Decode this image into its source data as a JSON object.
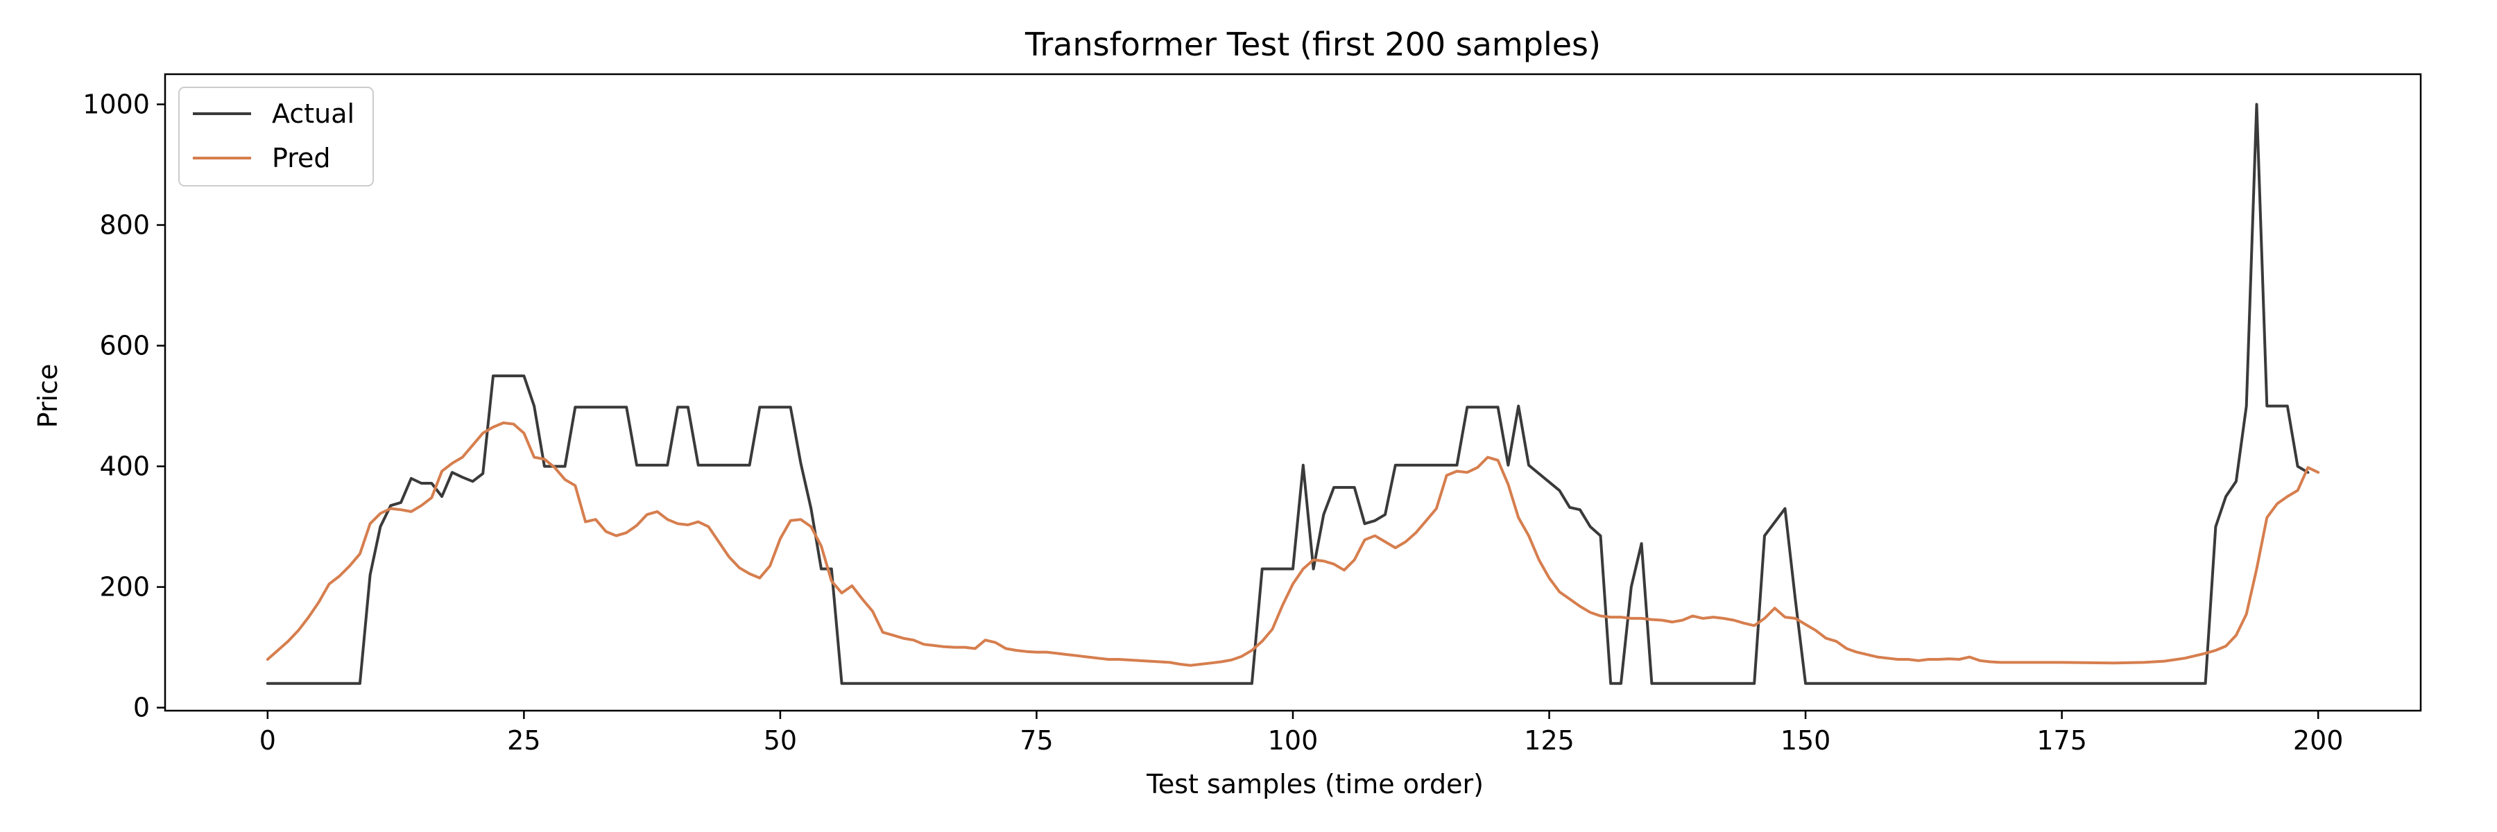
{
  "chart_data": {
    "type": "line",
    "title": "Transformer Test (first 200 samples)",
    "xlabel": "Test samples (time order)",
    "ylabel": "Price",
    "xlim": [
      -10,
      210
    ],
    "ylim": [
      -5,
      1050
    ],
    "xticks": [
      0,
      25,
      50,
      75,
      100,
      125,
      150,
      175,
      200
    ],
    "yticks": [
      0,
      200,
      400,
      600,
      800,
      1000
    ],
    "grid": false,
    "legend_position": "top-left",
    "series": [
      {
        "name": "Actual",
        "color": "#3a3a3a",
        "points": [
          [
            0,
            40
          ],
          [
            9,
            40
          ],
          [
            10,
            220
          ],
          [
            11,
            300
          ],
          [
            12,
            335
          ],
          [
            13,
            340
          ],
          [
            14,
            380
          ],
          [
            15,
            372
          ],
          [
            16,
            372
          ],
          [
            17,
            350
          ],
          [
            18,
            390
          ],
          [
            19,
            382
          ],
          [
            20,
            375
          ],
          [
            21,
            388
          ],
          [
            22,
            550
          ],
          [
            25,
            550
          ],
          [
            26,
            500
          ],
          [
            27,
            400
          ],
          [
            29,
            400
          ],
          [
            30,
            498
          ],
          [
            35,
            498
          ],
          [
            36,
            402
          ],
          [
            39,
            402
          ],
          [
            40,
            498
          ],
          [
            41,
            498
          ],
          [
            42,
            402
          ],
          [
            47,
            402
          ],
          [
            48,
            498
          ],
          [
            51,
            498
          ],
          [
            52,
            405
          ],
          [
            53,
            330
          ],
          [
            54,
            230
          ],
          [
            55,
            230
          ],
          [
            56,
            40
          ],
          [
            96,
            40
          ],
          [
            97,
            230
          ],
          [
            100,
            230
          ],
          [
            101,
            402
          ],
          [
            102,
            230
          ],
          [
            103,
            320
          ],
          [
            104,
            365
          ],
          [
            106,
            365
          ],
          [
            107,
            305
          ],
          [
            108,
            310
          ],
          [
            109,
            320
          ],
          [
            110,
            402
          ],
          [
            116,
            402
          ],
          [
            117,
            498
          ],
          [
            120,
            498
          ],
          [
            121,
            402
          ],
          [
            122,
            500
          ],
          [
            123,
            402
          ],
          [
            126,
            360
          ],
          [
            127,
            332
          ],
          [
            128,
            328
          ],
          [
            129,
            300
          ],
          [
            130,
            285
          ],
          [
            131,
            40
          ],
          [
            132,
            40
          ],
          [
            133,
            200
          ],
          [
            134,
            272
          ],
          [
            135,
            40
          ],
          [
            145,
            40
          ],
          [
            146,
            285
          ],
          [
            148,
            330
          ],
          [
            149,
            180
          ],
          [
            150,
            40
          ],
          [
            189,
            40
          ],
          [
            190,
            300
          ],
          [
            191,
            350
          ],
          [
            192,
            375
          ],
          [
            193,
            500
          ],
          [
            194,
            1000
          ],
          [
            195,
            500
          ],
          [
            197,
            500
          ],
          [
            198,
            400
          ],
          [
            199,
            390
          ]
        ]
      },
      {
        "name": "Pred",
        "color": "#d67e4e",
        "points": [
          [
            0,
            80
          ],
          [
            1,
            95
          ],
          [
            2,
            110
          ],
          [
            3,
            128
          ],
          [
            4,
            150
          ],
          [
            5,
            175
          ],
          [
            6,
            205
          ],
          [
            7,
            218
          ],
          [
            8,
            235
          ],
          [
            9,
            255
          ],
          [
            10,
            305
          ],
          [
            11,
            322
          ],
          [
            12,
            330
          ],
          [
            13,
            328
          ],
          [
            14,
            325
          ],
          [
            15,
            335
          ],
          [
            16,
            348
          ],
          [
            17,
            392
          ],
          [
            18,
            405
          ],
          [
            19,
            415
          ],
          [
            20,
            435
          ],
          [
            21,
            455
          ],
          [
            22,
            465
          ],
          [
            23,
            472
          ],
          [
            24,
            470
          ],
          [
            25,
            455
          ],
          [
            26,
            415
          ],
          [
            27,
            412
          ],
          [
            28,
            398
          ],
          [
            29,
            378
          ],
          [
            30,
            368
          ],
          [
            31,
            308
          ],
          [
            32,
            312
          ],
          [
            33,
            292
          ],
          [
            34,
            285
          ],
          [
            35,
            290
          ],
          [
            36,
            302
          ],
          [
            37,
            320
          ],
          [
            38,
            325
          ],
          [
            39,
            312
          ],
          [
            40,
            305
          ],
          [
            41,
            303
          ],
          [
            42,
            308
          ],
          [
            43,
            300
          ],
          [
            44,
            275
          ],
          [
            45,
            250
          ],
          [
            46,
            232
          ],
          [
            47,
            222
          ],
          [
            48,
            215
          ],
          [
            49,
            235
          ],
          [
            50,
            280
          ],
          [
            51,
            310
          ],
          [
            52,
            312
          ],
          [
            53,
            300
          ],
          [
            54,
            268
          ],
          [
            55,
            210
          ],
          [
            56,
            190
          ],
          [
            57,
            202
          ],
          [
            58,
            180
          ],
          [
            59,
            160
          ],
          [
            60,
            125
          ],
          [
            61,
            120
          ],
          [
            62,
            115
          ],
          [
            63,
            112
          ],
          [
            64,
            105
          ],
          [
            65,
            103
          ],
          [
            66,
            101
          ],
          [
            67,
            100
          ],
          [
            68,
            100
          ],
          [
            69,
            98
          ],
          [
            70,
            112
          ],
          [
            71,
            108
          ],
          [
            72,
            98
          ],
          [
            73,
            95
          ],
          [
            74,
            93
          ],
          [
            75,
            92
          ],
          [
            76,
            92
          ],
          [
            77,
            90
          ],
          [
            78,
            88
          ],
          [
            79,
            86
          ],
          [
            80,
            84
          ],
          [
            81,
            82
          ],
          [
            82,
            80
          ],
          [
            83,
            80
          ],
          [
            84,
            79
          ],
          [
            85,
            78
          ],
          [
            86,
            77
          ],
          [
            87,
            76
          ],
          [
            88,
            75
          ],
          [
            89,
            72
          ],
          [
            90,
            70
          ],
          [
            91,
            72
          ],
          [
            92,
            74
          ],
          [
            93,
            76
          ],
          [
            94,
            79
          ],
          [
            95,
            85
          ],
          [
            96,
            95
          ],
          [
            97,
            110
          ],
          [
            98,
            130
          ],
          [
            99,
            170
          ],
          [
            100,
            205
          ],
          [
            101,
            230
          ],
          [
            102,
            245
          ],
          [
            103,
            243
          ],
          [
            104,
            238
          ],
          [
            105,
            228
          ],
          [
            106,
            245
          ],
          [
            107,
            278
          ],
          [
            108,
            285
          ],
          [
            109,
            275
          ],
          [
            110,
            265
          ],
          [
            111,
            275
          ],
          [
            112,
            290
          ],
          [
            113,
            310
          ],
          [
            114,
            330
          ],
          [
            115,
            385
          ],
          [
            116,
            392
          ],
          [
            117,
            390
          ],
          [
            118,
            398
          ],
          [
            119,
            415
          ],
          [
            120,
            410
          ],
          [
            121,
            370
          ],
          [
            122,
            315
          ],
          [
            123,
            285
          ],
          [
            124,
            245
          ],
          [
            125,
            215
          ],
          [
            126,
            192
          ],
          [
            127,
            180
          ],
          [
            128,
            168
          ],
          [
            129,
            158
          ],
          [
            130,
            152
          ],
          [
            131,
            150
          ],
          [
            132,
            150
          ],
          [
            133,
            148
          ],
          [
            134,
            148
          ],
          [
            135,
            146
          ],
          [
            136,
            145
          ],
          [
            137,
            142
          ],
          [
            138,
            145
          ],
          [
            139,
            152
          ],
          [
            140,
            148
          ],
          [
            141,
            150
          ],
          [
            142,
            148
          ],
          [
            143,
            145
          ],
          [
            144,
            140
          ],
          [
            145,
            136
          ],
          [
            146,
            148
          ],
          [
            147,
            165
          ],
          [
            148,
            150
          ],
          [
            149,
            148
          ],
          [
            150,
            138
          ],
          [
            151,
            128
          ],
          [
            152,
            115
          ],
          [
            153,
            110
          ],
          [
            154,
            98
          ],
          [
            155,
            92
          ],
          [
            156,
            88
          ],
          [
            157,
            84
          ],
          [
            158,
            82
          ],
          [
            159,
            80
          ],
          [
            160,
            80
          ],
          [
            161,
            78
          ],
          [
            162,
            80
          ],
          [
            163,
            80
          ],
          [
            164,
            81
          ],
          [
            165,
            80
          ],
          [
            166,
            84
          ],
          [
            167,
            78
          ],
          [
            168,
            76
          ],
          [
            169,
            75
          ],
          [
            170,
            75
          ],
          [
            175,
            75
          ],
          [
            180,
            74
          ],
          [
            183,
            75
          ],
          [
            185,
            77
          ],
          [
            187,
            82
          ],
          [
            189,
            90
          ],
          [
            190,
            95
          ],
          [
            191,
            102
          ],
          [
            192,
            120
          ],
          [
            193,
            155
          ],
          [
            194,
            230
          ],
          [
            195,
            315
          ],
          [
            196,
            338
          ],
          [
            197,
            350
          ],
          [
            198,
            360
          ],
          [
            199,
            398
          ],
          [
            200,
            390
          ]
        ]
      }
    ]
  }
}
